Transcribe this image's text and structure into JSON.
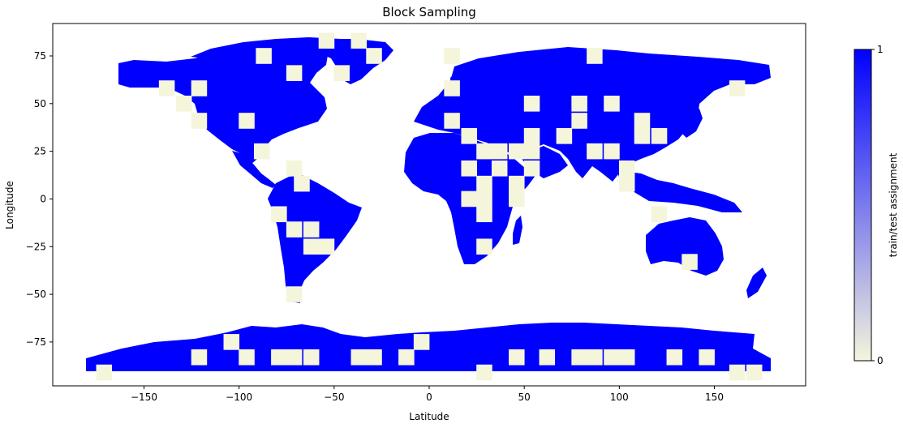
{
  "chart_data": {
    "type": "heatmap",
    "title": "Block Sampling",
    "xlabel": "Latitude",
    "ylabel": "Longitude",
    "xlim": [
      -198,
      198
    ],
    "ylim": [
      -98,
      92
    ],
    "xticks": [
      -150,
      -100,
      -50,
      0,
      50,
      100,
      150
    ],
    "yticks": [
      75,
      50,
      25,
      0,
      -25,
      -50,
      -75
    ],
    "block_size_degrees": 8.33,
    "colorbar": {
      "label": "train/test assignment",
      "min": 0,
      "max": 1,
      "ticks": [
        0,
        1
      ],
      "color_min": "#f5f5dc",
      "color_max": "#0000ff"
    },
    "grid": false,
    "test_blocks": [
      {
        "lon": -138,
        "lat": 58
      },
      {
        "lon": -121,
        "lat": 58
      },
      {
        "lon": -129,
        "lat": 50
      },
      {
        "lon": -121,
        "lat": 41
      },
      {
        "lon": -96,
        "lat": 41
      },
      {
        "lon": -88,
        "lat": 25
      },
      {
        "lon": -71,
        "lat": 16
      },
      {
        "lon": -67,
        "lat": 8
      },
      {
        "lon": -79,
        "lat": -8
      },
      {
        "lon": -71,
        "lat": -16
      },
      {
        "lon": -62,
        "lat": -16
      },
      {
        "lon": -62,
        "lat": -25
      },
      {
        "lon": -54,
        "lat": -25
      },
      {
        "lon": -71,
        "lat": -50
      },
      {
        "lon": -54,
        "lat": 83
      },
      {
        "lon": -37,
        "lat": 83
      },
      {
        "lon": -29,
        "lat": 75
      },
      {
        "lon": -46,
        "lat": 66
      },
      {
        "lon": -87,
        "lat": 75
      },
      {
        "lon": -71,
        "lat": 66
      },
      {
        "lon": 12,
        "lat": 75
      },
      {
        "lon": 12,
        "lat": 58
      },
      {
        "lon": 12,
        "lat": 41
      },
      {
        "lon": 21,
        "lat": 33
      },
      {
        "lon": 29,
        "lat": 25
      },
      {
        "lon": 37,
        "lat": 25
      },
      {
        "lon": 46,
        "lat": 25
      },
      {
        "lon": 54,
        "lat": 25
      },
      {
        "lon": 21,
        "lat": 16
      },
      {
        "lon": 37,
        "lat": 16
      },
      {
        "lon": 54,
        "lat": 16
      },
      {
        "lon": 29,
        "lat": 8
      },
      {
        "lon": 46,
        "lat": 8
      },
      {
        "lon": 21,
        "lat": 0
      },
      {
        "lon": 29,
        "lat": 0
      },
      {
        "lon": 46,
        "lat": 0
      },
      {
        "lon": 29,
        "lat": -8
      },
      {
        "lon": 29,
        "lat": -25
      },
      {
        "lon": 54,
        "lat": 50
      },
      {
        "lon": 54,
        "lat": 33
      },
      {
        "lon": 71,
        "lat": 33
      },
      {
        "lon": 79,
        "lat": 41
      },
      {
        "lon": 79,
        "lat": 50
      },
      {
        "lon": 96,
        "lat": 50
      },
      {
        "lon": 112,
        "lat": 41
      },
      {
        "lon": 112,
        "lat": 33
      },
      {
        "lon": 87,
        "lat": 25
      },
      {
        "lon": 96,
        "lat": 25
      },
      {
        "lon": 104,
        "lat": 16
      },
      {
        "lon": 121,
        "lat": 33
      },
      {
        "lon": 104,
        "lat": 8
      },
      {
        "lon": 87,
        "lat": 75
      },
      {
        "lon": 137,
        "lat": -33
      },
      {
        "lon": 121,
        "lat": -8
      },
      {
        "lon": 162,
        "lat": 58
      },
      {
        "lon": -171,
        "lat": -91
      },
      {
        "lon": -121,
        "lat": -83
      },
      {
        "lon": -96,
        "lat": -83
      },
      {
        "lon": -104,
        "lat": -75
      },
      {
        "lon": -79,
        "lat": -83
      },
      {
        "lon": -71,
        "lat": -83
      },
      {
        "lon": -62,
        "lat": -83
      },
      {
        "lon": -37,
        "lat": -83
      },
      {
        "lon": -29,
        "lat": -83
      },
      {
        "lon": -12,
        "lat": -83
      },
      {
        "lon": -4,
        "lat": -75
      },
      {
        "lon": 29,
        "lat": -91
      },
      {
        "lon": 46,
        "lat": -83
      },
      {
        "lon": 62,
        "lat": -83
      },
      {
        "lon": 79,
        "lat": -83
      },
      {
        "lon": 87,
        "lat": -83
      },
      {
        "lon": 96,
        "lat": -83
      },
      {
        "lon": 104,
        "lat": -83
      },
      {
        "lon": 129,
        "lat": -83
      },
      {
        "lon": 146,
        "lat": -83
      },
      {
        "lon": 162,
        "lat": -91
      },
      {
        "lon": 171,
        "lat": -91
      }
    ]
  }
}
